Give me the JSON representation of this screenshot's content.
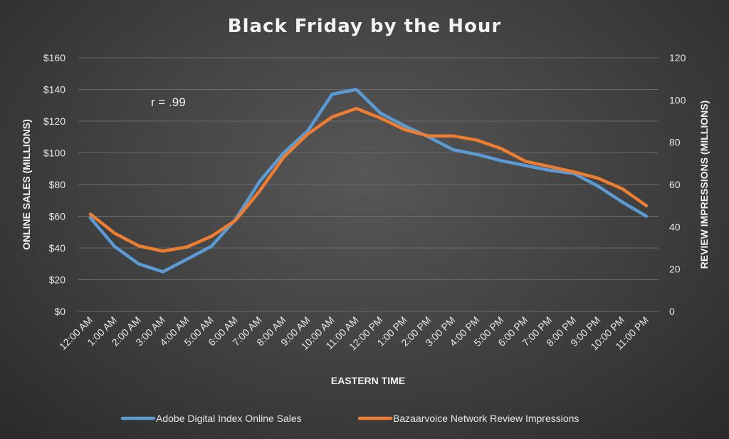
{
  "chart_data": {
    "type": "line",
    "title": "Black Friday by the Hour",
    "annotation": "r = .99",
    "xlabel": "EASTERN TIME",
    "ylabel_left": "ONLINE SALES (MILLIONS)",
    "ylabel_right": "REVIEW IMPRESSIONS (MILLIONS)",
    "categories": [
      "12:00 AM",
      "1:00 AM",
      "2:00 AM",
      "3:00 AM",
      "4:00 AM",
      "5:00 AM",
      "6:00 AM",
      "7:00 AM",
      "8:00 AM",
      "9:00 AM",
      "10:00 AM",
      "11:00 AM",
      "12:00 PM",
      "1:00 PM",
      "2:00 PM",
      "3:00 PM",
      "4:00 PM",
      "5:00 PM",
      "6:00 PM",
      "7:00 PM",
      "8:00 PM",
      "9:00 PM",
      "10:00 PM",
      "11:00 PM"
    ],
    "ylim_left": [
      0,
      160
    ],
    "ylim_right": [
      0,
      120
    ],
    "yticks_left": [
      "$0",
      "$20",
      "$40",
      "$60",
      "$80",
      "$100",
      "$120",
      "$140",
      "$160"
    ],
    "yticks_right": [
      "0",
      "20",
      "40",
      "60",
      "80",
      "100",
      "120"
    ],
    "grid": true,
    "legend_position": "bottom",
    "series": [
      {
        "name": "Adobe Digital Index Online Sales",
        "axis": "left",
        "color": "#5b9bd5",
        "values": [
          59,
          41,
          30,
          25,
          33,
          41,
          58,
          82,
          100,
          114,
          137,
          140,
          125,
          117,
          110,
          102,
          99,
          95,
          92,
          89,
          87,
          79,
          69,
          60
        ]
      },
      {
        "name": "Bazaarvoice Network Review Impressions",
        "axis": "right",
        "color": "#ed7d31",
        "values": [
          46,
          37,
          31,
          28.5,
          30.5,
          35.5,
          43,
          57,
          73,
          84,
          92,
          96,
          91.5,
          86,
          83,
          83,
          81,
          77,
          71,
          68.5,
          66,
          63,
          58,
          50
        ]
      }
    ]
  }
}
